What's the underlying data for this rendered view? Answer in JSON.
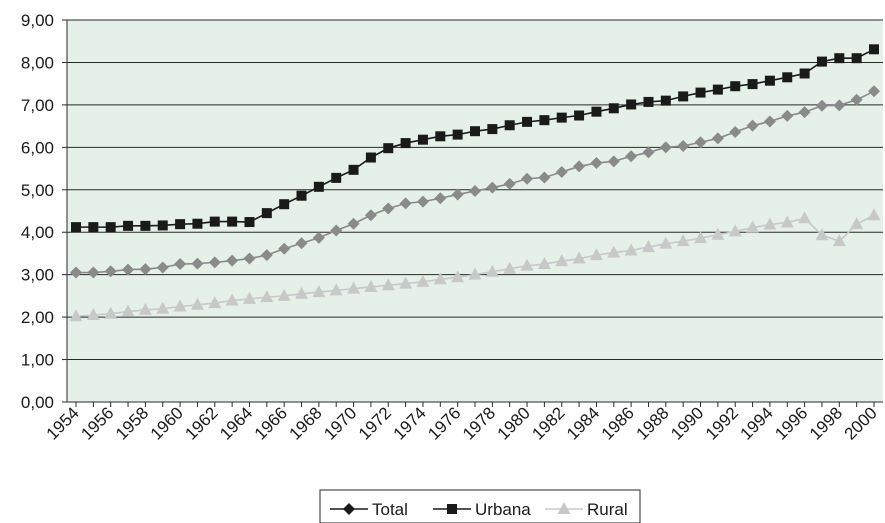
{
  "chart_data": {
    "type": "line",
    "title": "",
    "xlabel": "",
    "ylabel": "",
    "ylim": [
      0,
      9
    ],
    "y_ticks": [
      "0,00",
      "1,00",
      "2,00",
      "3,00",
      "4,00",
      "5,00",
      "6,00",
      "7,00",
      "8,00",
      "9,00"
    ],
    "x_tick_labels": [
      "1954",
      "1956",
      "1958",
      "1960",
      "1962",
      "1964",
      "1966",
      "1968",
      "1970",
      "1972",
      "1974",
      "1976",
      "1978",
      "1980",
      "1982",
      "1984",
      "1986",
      "1988",
      "1990",
      "1992",
      "1994",
      "1996",
      "1998",
      "2000"
    ],
    "x": [
      1954,
      1955,
      1956,
      1957,
      1958,
      1959,
      1960,
      1961,
      1962,
      1963,
      1964,
      1965,
      1966,
      1967,
      1968,
      1969,
      1970,
      1971,
      1972,
      1973,
      1974,
      1975,
      1976,
      1977,
      1978,
      1979,
      1980,
      1981,
      1982,
      1983,
      1984,
      1985,
      1986,
      1987,
      1988,
      1989,
      1990,
      1991,
      1992,
      1993,
      1994,
      1995,
      1996,
      1997,
      1998,
      1999,
      2000
    ],
    "grid": "horizontal",
    "plot_background": "#e4f0e8",
    "legend_position": "bottom",
    "series": [
      {
        "name": "Total",
        "marker": "diamond",
        "color": "#1a1a1a",
        "values": [
          3.05,
          3.05,
          3.08,
          3.12,
          3.13,
          3.17,
          3.25,
          3.26,
          3.29,
          3.33,
          3.38,
          3.46,
          3.61,
          3.74,
          3.87,
          4.04,
          4.2,
          4.4,
          4.56,
          4.68,
          4.72,
          4.8,
          4.89,
          4.97,
          5.05,
          5.14,
          5.26,
          5.29,
          5.42,
          5.55,
          5.63,
          5.67,
          5.79,
          5.88,
          6.0,
          6.03,
          6.12,
          6.21,
          6.36,
          6.51,
          6.61,
          6.74,
          6.83,
          6.98,
          6.99,
          7.12,
          7.32
        ]
      },
      {
        "name": "Urbana",
        "marker": "square",
        "color": "#1a1a1a",
        "values": [
          4.12,
          4.12,
          4.12,
          4.15,
          4.15,
          4.16,
          4.19,
          4.2,
          4.25,
          4.25,
          4.24,
          4.45,
          4.66,
          4.86,
          5.07,
          5.28,
          5.47,
          5.76,
          5.98,
          6.1,
          6.18,
          6.26,
          6.3,
          6.38,
          6.43,
          6.52,
          6.6,
          6.64,
          6.7,
          6.75,
          6.84,
          6.92,
          7.01,
          7.07,
          7.1,
          7.2,
          7.29,
          7.36,
          7.44,
          7.49,
          7.57,
          7.65,
          7.74,
          8.02,
          8.1,
          8.1,
          8.31
        ]
      },
      {
        "name": "Rural",
        "marker": "triangle",
        "color": "#c8c8c8",
        "values": [
          2.02,
          2.05,
          2.08,
          2.13,
          2.17,
          2.2,
          2.25,
          2.29,
          2.33,
          2.39,
          2.43,
          2.47,
          2.5,
          2.55,
          2.59,
          2.63,
          2.67,
          2.71,
          2.75,
          2.79,
          2.83,
          2.89,
          2.94,
          3.0,
          3.07,
          3.14,
          3.21,
          3.25,
          3.32,
          3.38,
          3.46,
          3.52,
          3.57,
          3.65,
          3.73,
          3.79,
          3.86,
          3.94,
          4.02,
          4.11,
          4.18,
          4.23,
          4.33,
          3.93,
          3.79,
          4.19,
          4.4
        ]
      }
    ]
  }
}
